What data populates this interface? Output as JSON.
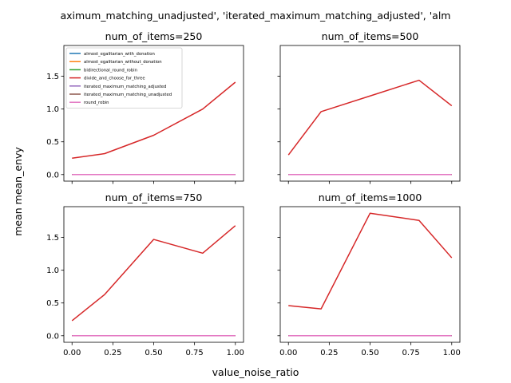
{
  "figure": {
    "suptitle": "aximum_matching_unadjusted', 'iterated_maximum_matching_adjusted', 'alm",
    "xlabel": "value_noise_ratio",
    "ylabel": "mean mean_envy"
  },
  "legend": {
    "location": "upper-left of first panel",
    "entries": [
      {
        "name": "almost_egalitarian_with_donation",
        "color": "#1f77b4"
      },
      {
        "name": "almost_egalitarian_without_donation",
        "color": "#ff7f0e"
      },
      {
        "name": "bidirectional_round_robin",
        "color": "#2ca02c"
      },
      {
        "name": "divide_and_choose_for_three",
        "color": "#d62728"
      },
      {
        "name": "iterated_maximum_matching_adjusted",
        "color": "#9467bd"
      },
      {
        "name": "iterated_maximum_matching_unadjusted",
        "color": "#8c564b"
      },
      {
        "name": "round_robin",
        "color": "#e377c2"
      }
    ]
  },
  "chart_data": [
    {
      "type": "line",
      "title": "num_of_items=250",
      "xlim": [
        -0.05,
        1.05
      ],
      "ylim": [
        -0.1,
        1.97
      ],
      "xticks": [
        0.0,
        0.25,
        0.5,
        0.75,
        1.0
      ],
      "xtick_labels": [],
      "yticks": [
        0.0,
        0.5,
        1.0,
        1.5
      ],
      "ytick_labels": [
        "0.0",
        "0.5",
        "1.0",
        "1.5"
      ],
      "series": [
        {
          "name": "almost_egalitarian_with_donation",
          "color": "#1f77b4",
          "x": [
            0.0,
            0.2,
            0.5,
            0.8,
            1.0
          ],
          "y": [
            0,
            0,
            0,
            0,
            0
          ]
        },
        {
          "name": "almost_egalitarian_without_donation",
          "color": "#ff7f0e",
          "x": [
            0.0,
            0.2,
            0.5,
            0.8,
            1.0
          ],
          "y": [
            0,
            0,
            0,
            0,
            0
          ]
        },
        {
          "name": "bidirectional_round_robin",
          "color": "#2ca02c",
          "x": [
            0.0,
            0.2,
            0.5,
            0.8,
            1.0
          ],
          "y": [
            0,
            0,
            0,
            0,
            0
          ]
        },
        {
          "name": "divide_and_choose_for_three",
          "color": "#d62728",
          "x": [
            0.0,
            0.2,
            0.5,
            0.8,
            1.0
          ],
          "y": [
            0.25,
            0.32,
            0.6,
            1.0,
            1.41
          ]
        },
        {
          "name": "iterated_maximum_matching_adjusted",
          "color": "#9467bd",
          "x": [
            0.0,
            0.2,
            0.5,
            0.8,
            1.0
          ],
          "y": [
            0,
            0,
            0,
            0,
            0
          ]
        },
        {
          "name": "iterated_maximum_matching_unadjusted",
          "color": "#8c564b",
          "x": [
            0.0,
            0.2,
            0.5,
            0.8,
            1.0
          ],
          "y": [
            0,
            0,
            0,
            0,
            0
          ]
        },
        {
          "name": "round_robin",
          "color": "#e377c2",
          "x": [
            0.0,
            0.2,
            0.5,
            0.8,
            1.0
          ],
          "y": [
            0,
            0,
            0,
            0,
            0
          ]
        }
      ]
    },
    {
      "type": "line",
      "title": "num_of_items=500",
      "xlim": [
        -0.05,
        1.05
      ],
      "ylim": [
        -0.1,
        1.97
      ],
      "xticks": [
        0.0,
        0.25,
        0.5,
        0.75,
        1.0
      ],
      "xtick_labels": [],
      "yticks": [
        0.0,
        0.5,
        1.0,
        1.5
      ],
      "ytick_labels": [],
      "series": [
        {
          "name": "almost_egalitarian_with_donation",
          "color": "#1f77b4",
          "x": [
            0.0,
            0.2,
            0.5,
            0.8,
            1.0
          ],
          "y": [
            0,
            0,
            0,
            0,
            0
          ]
        },
        {
          "name": "almost_egalitarian_without_donation",
          "color": "#ff7f0e",
          "x": [
            0.0,
            0.2,
            0.5,
            0.8,
            1.0
          ],
          "y": [
            0,
            0,
            0,
            0,
            0
          ]
        },
        {
          "name": "bidirectional_round_robin",
          "color": "#2ca02c",
          "x": [
            0.0,
            0.2,
            0.5,
            0.8,
            1.0
          ],
          "y": [
            0,
            0,
            0,
            0,
            0
          ]
        },
        {
          "name": "divide_and_choose_for_three",
          "color": "#d62728",
          "x": [
            0.0,
            0.2,
            0.5,
            0.8,
            1.0
          ],
          "y": [
            0.3,
            0.96,
            1.2,
            1.44,
            1.05
          ]
        },
        {
          "name": "iterated_maximum_matching_adjusted",
          "color": "#9467bd",
          "x": [
            0.0,
            0.2,
            0.5,
            0.8,
            1.0
          ],
          "y": [
            0,
            0,
            0,
            0,
            0
          ]
        },
        {
          "name": "iterated_maximum_matching_unadjusted",
          "color": "#8c564b",
          "x": [
            0.0,
            0.2,
            0.5,
            0.8,
            1.0
          ],
          "y": [
            0,
            0,
            0,
            0,
            0
          ]
        },
        {
          "name": "round_robin",
          "color": "#e377c2",
          "x": [
            0.0,
            0.2,
            0.5,
            0.8,
            1.0
          ],
          "y": [
            0,
            0,
            0,
            0,
            0
          ]
        }
      ]
    },
    {
      "type": "line",
      "title": "num_of_items=750",
      "xlim": [
        -0.05,
        1.05
      ],
      "ylim": [
        -0.1,
        1.97
      ],
      "xticks": [
        0.0,
        0.25,
        0.5,
        0.75,
        1.0
      ],
      "xtick_labels": [
        "0.00",
        "0.25",
        "0.50",
        "0.75",
        "1.00"
      ],
      "yticks": [
        0.0,
        0.5,
        1.0,
        1.5
      ],
      "ytick_labels": [
        "0.0",
        "0.5",
        "1.0",
        "1.5"
      ],
      "series": [
        {
          "name": "almost_egalitarian_with_donation",
          "color": "#1f77b4",
          "x": [
            0.0,
            0.2,
            0.5,
            0.8,
            1.0
          ],
          "y": [
            0,
            0,
            0,
            0,
            0
          ]
        },
        {
          "name": "almost_egalitarian_without_donation",
          "color": "#ff7f0e",
          "x": [
            0.0,
            0.2,
            0.5,
            0.8,
            1.0
          ],
          "y": [
            0,
            0,
            0,
            0,
            0
          ]
        },
        {
          "name": "bidirectional_round_robin",
          "color": "#2ca02c",
          "x": [
            0.0,
            0.2,
            0.5,
            0.8,
            1.0
          ],
          "y": [
            0,
            0,
            0,
            0,
            0
          ]
        },
        {
          "name": "divide_and_choose_for_three",
          "color": "#d62728",
          "x": [
            0.0,
            0.2,
            0.5,
            0.8,
            1.0
          ],
          "y": [
            0.23,
            0.63,
            1.47,
            1.26,
            1.68
          ]
        },
        {
          "name": "iterated_maximum_matching_adjusted",
          "color": "#9467bd",
          "x": [
            0.0,
            0.2,
            0.5,
            0.8,
            1.0
          ],
          "y": [
            0,
            0,
            0,
            0,
            0
          ]
        },
        {
          "name": "iterated_maximum_matching_unadjusted",
          "color": "#8c564b",
          "x": [
            0.0,
            0.2,
            0.5,
            0.8,
            1.0
          ],
          "y": [
            0,
            0,
            0,
            0,
            0
          ]
        },
        {
          "name": "round_robin",
          "color": "#e377c2",
          "x": [
            0.0,
            0.2,
            0.5,
            0.8,
            1.0
          ],
          "y": [
            0,
            0,
            0,
            0,
            0
          ]
        }
      ]
    },
    {
      "type": "line",
      "title": "num_of_items=1000",
      "xlim": [
        -0.05,
        1.05
      ],
      "ylim": [
        -0.1,
        1.97
      ],
      "xticks": [
        0.0,
        0.25,
        0.5,
        0.75,
        1.0
      ],
      "xtick_labels": [
        "0.00",
        "0.25",
        "0.50",
        "0.75",
        "1.00"
      ],
      "yticks": [
        0.0,
        0.5,
        1.0,
        1.5
      ],
      "ytick_labels": [],
      "series": [
        {
          "name": "almost_egalitarian_with_donation",
          "color": "#1f77b4",
          "x": [
            0.0,
            0.2,
            0.5,
            0.8,
            1.0
          ],
          "y": [
            0,
            0,
            0,
            0,
            0
          ]
        },
        {
          "name": "almost_egalitarian_without_donation",
          "color": "#ff7f0e",
          "x": [
            0.0,
            0.2,
            0.5,
            0.8,
            1.0
          ],
          "y": [
            0,
            0,
            0,
            0,
            0
          ]
        },
        {
          "name": "bidirectional_round_robin",
          "color": "#2ca02c",
          "x": [
            0.0,
            0.2,
            0.5,
            0.8,
            1.0
          ],
          "y": [
            0,
            0,
            0,
            0,
            0
          ]
        },
        {
          "name": "divide_and_choose_for_three",
          "color": "#d62728",
          "x": [
            0.0,
            0.2,
            0.5,
            0.8,
            1.0
          ],
          "y": [
            0.46,
            0.41,
            1.87,
            1.76,
            1.19
          ]
        },
        {
          "name": "iterated_maximum_matching_adjusted",
          "color": "#9467bd",
          "x": [
            0.0,
            0.2,
            0.5,
            0.8,
            1.0
          ],
          "y": [
            0,
            0,
            0,
            0,
            0
          ]
        },
        {
          "name": "iterated_maximum_matching_unadjusted",
          "color": "#8c564b",
          "x": [
            0.0,
            0.2,
            0.5,
            0.8,
            1.0
          ],
          "y": [
            0,
            0,
            0,
            0,
            0
          ]
        },
        {
          "name": "round_robin",
          "color": "#e377c2",
          "x": [
            0.0,
            0.2,
            0.5,
            0.8,
            1.0
          ],
          "y": [
            0,
            0,
            0,
            0,
            0
          ]
        }
      ]
    }
  ]
}
